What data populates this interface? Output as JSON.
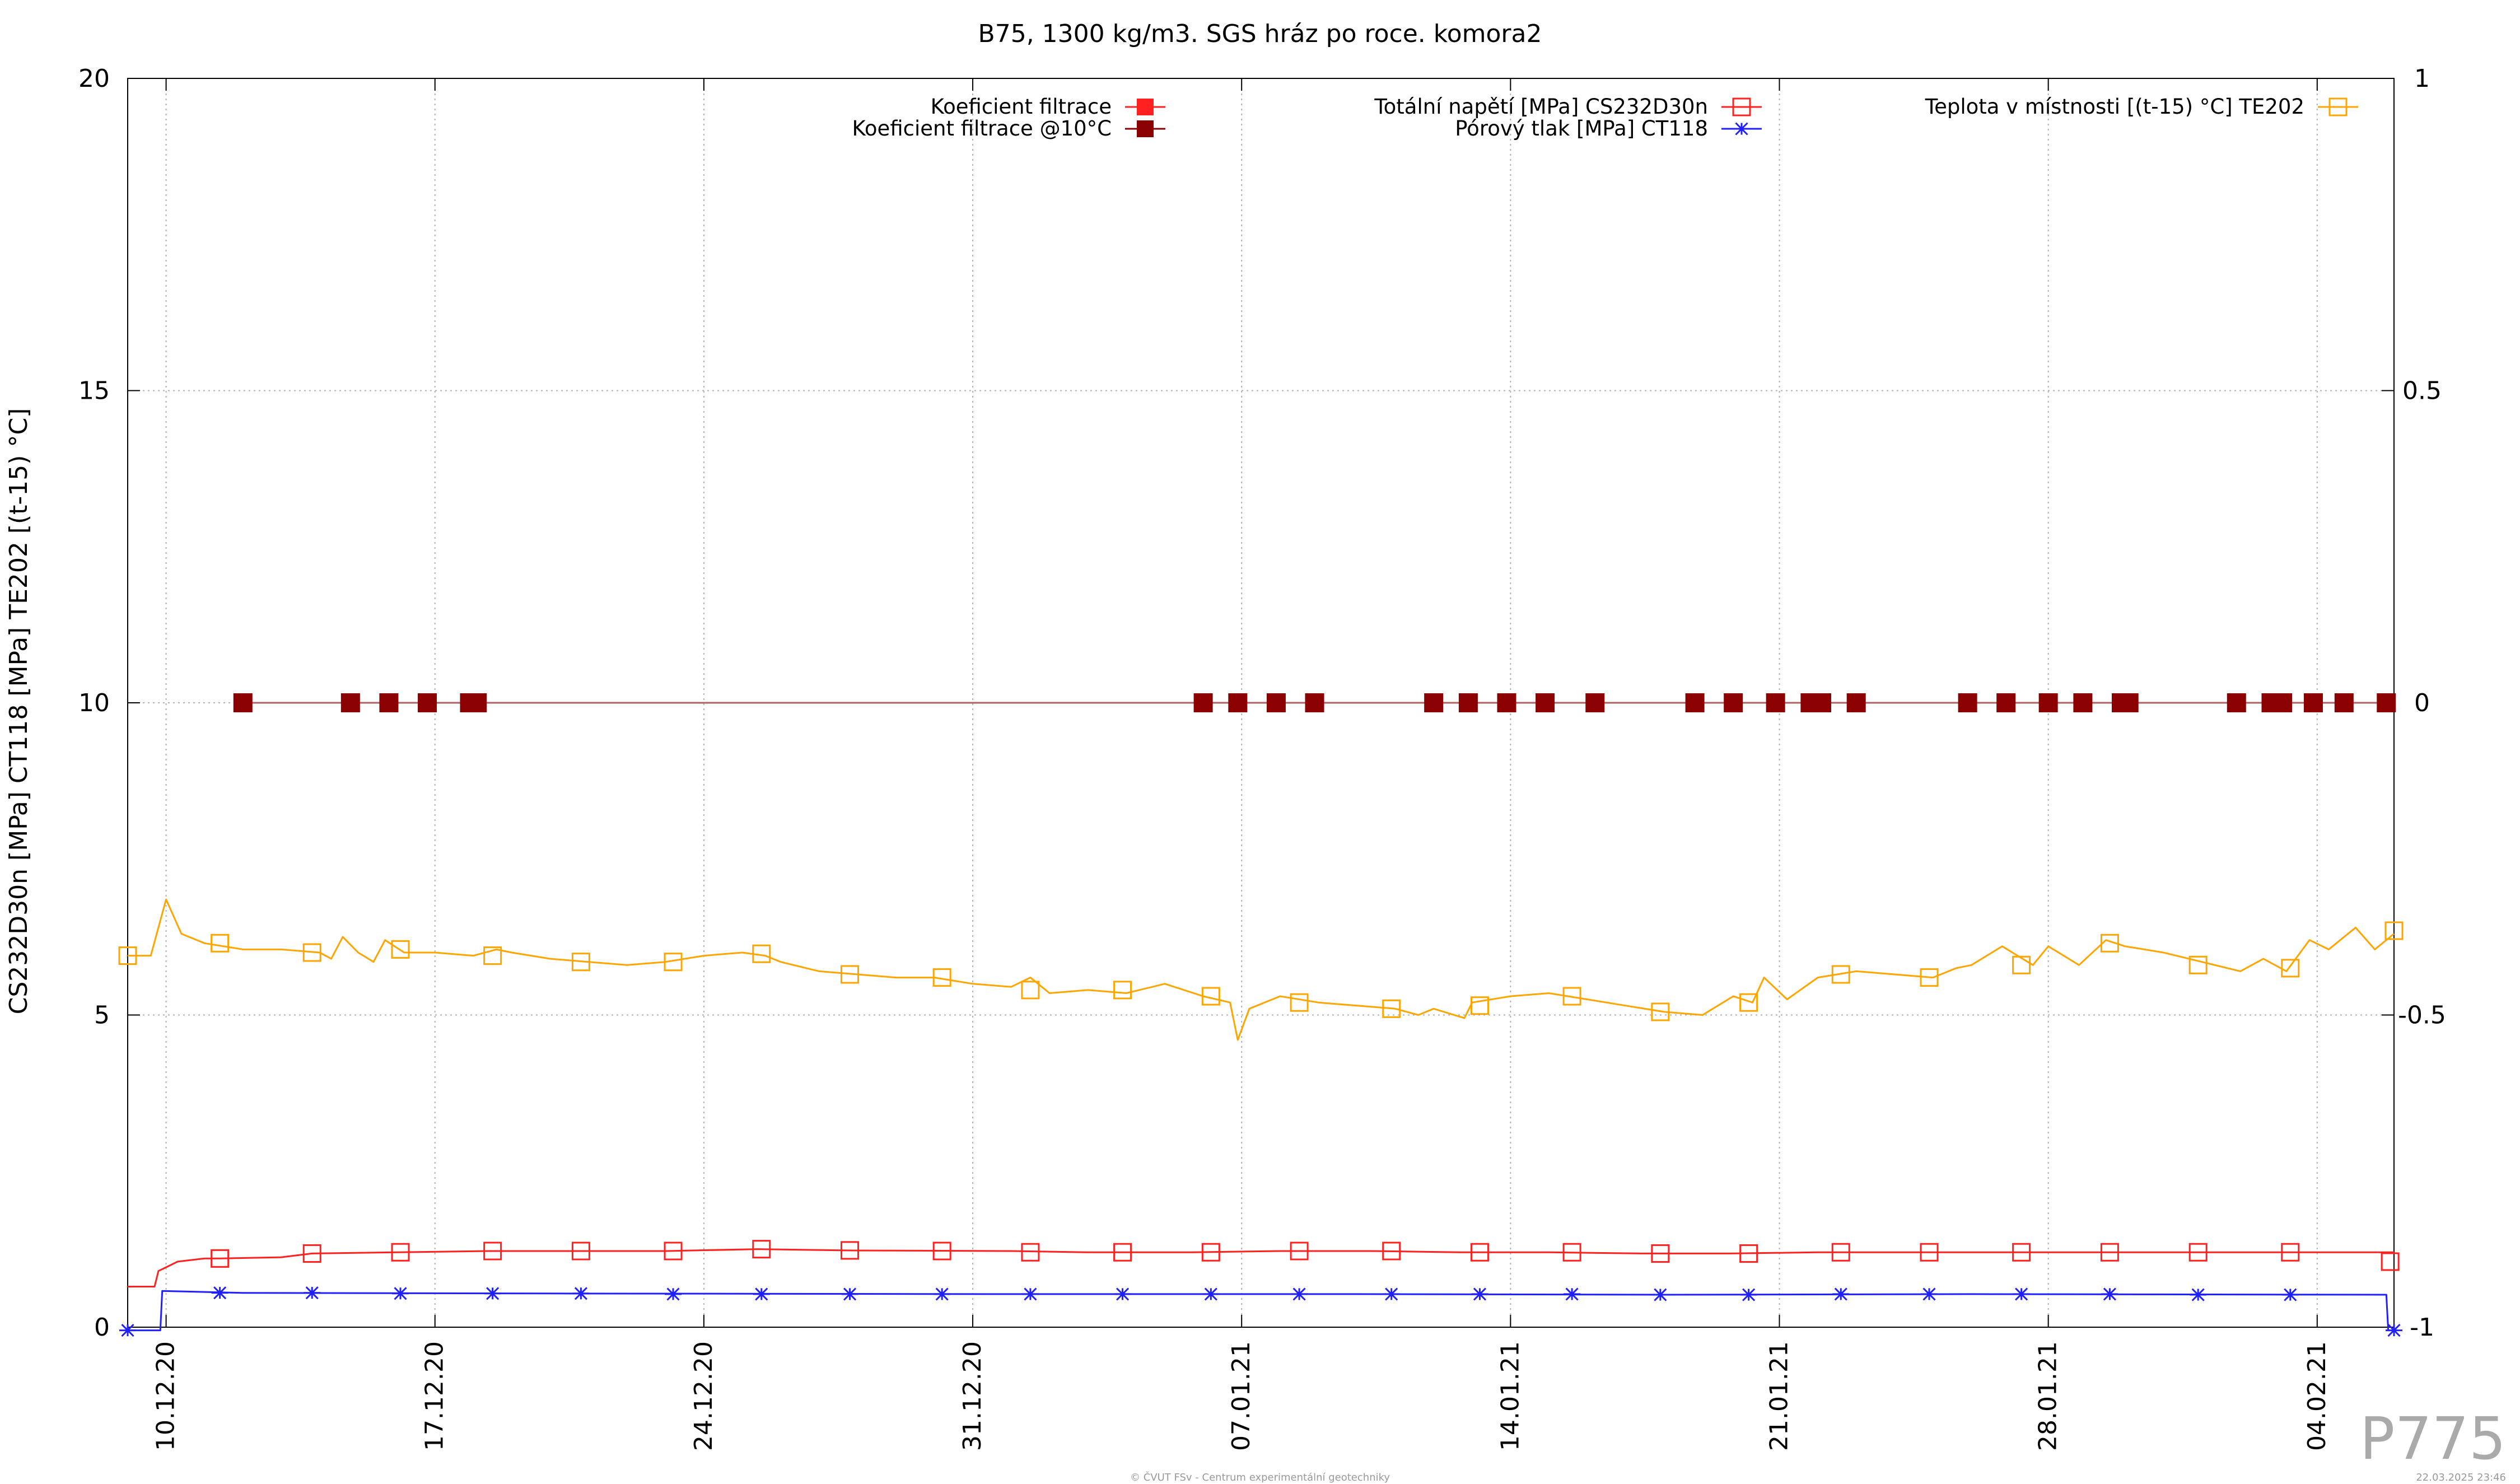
{
  "chart_data": {
    "type": "line",
    "title": "B75, 1300 kg/m3. SGS hráz po roce. komora2",
    "ylabel": "CS232D30n [MPa] CT118 [MPa] TE202 [(t-15) °C]",
    "xlabel": "",
    "x_range": [
      "2020-12-09",
      "2021-02-06"
    ],
    "ylim": [
      0,
      20
    ],
    "y2lim": [
      -1,
      1
    ],
    "y_ticks": [
      "0",
      "5",
      "10",
      "15",
      "20"
    ],
    "y2_ticks": [
      "-1",
      "-0.5",
      "0",
      "0.5",
      "1"
    ],
    "x_ticks": [
      {
        "date": "2020-12-10",
        "label": "10.12.20"
      },
      {
        "date": "2020-12-17",
        "label": "17.12.20"
      },
      {
        "date": "2020-12-24",
        "label": "24.12.20"
      },
      {
        "date": "2020-12-31",
        "label": "31.12.20"
      },
      {
        "date": "2021-01-07",
        "label": "07.01.21"
      },
      {
        "date": "2021-01-14",
        "label": "14.01.21"
      },
      {
        "date": "2021-01-21",
        "label": "21.01.21"
      },
      {
        "date": "2021-01-28",
        "label": "28.01.21"
      },
      {
        "date": "2021-02-04",
        "label": "04.02.21"
      }
    ],
    "grid": true,
    "legend": "top",
    "series": [
      {
        "name": "Koeficient filtrace",
        "axis": "y2",
        "color": "#ff2020",
        "marker": "filled-square",
        "points": []
      },
      {
        "name": "Koeficient filtrace @10°C",
        "axis": "y2",
        "color": "#8b0000",
        "marker": "filled-square",
        "points": [
          [
            "2020-12-12",
            0
          ],
          [
            "2020-12-14.8",
            0
          ],
          [
            "2020-12-15.8",
            0
          ],
          [
            "2020-12-16.8",
            0
          ],
          [
            "2020-12-17.9",
            0
          ],
          [
            "2020-12-18.1",
            0
          ],
          [
            "2021-01-06",
            0
          ],
          [
            "2021-01-06.9",
            0
          ],
          [
            "2021-01-07.9",
            0
          ],
          [
            "2021-01-08.9",
            0
          ],
          [
            "2021-01-12",
            0
          ],
          [
            "2021-01-12.9",
            0
          ],
          [
            "2021-01-13.9",
            0
          ],
          [
            "2021-01-14.9",
            0
          ],
          [
            "2021-01-16.2",
            0
          ],
          [
            "2021-01-18.8",
            0
          ],
          [
            "2021-01-19.8",
            0
          ],
          [
            "2021-01-20.9",
            0
          ],
          [
            "2021-01-21.8",
            0
          ],
          [
            "2021-01-22.1",
            0
          ],
          [
            "2021-01-23",
            0
          ],
          [
            "2021-01-25.9",
            0
          ],
          [
            "2021-01-26.9",
            0
          ],
          [
            "2021-01-28",
            0
          ],
          [
            "2021-01-28.9",
            0
          ],
          [
            "2021-01-29.9",
            0
          ],
          [
            "2021-01-30.1",
            0
          ],
          [
            "2021-02-01.9",
            0
          ],
          [
            "2021-02-02.8",
            0
          ],
          [
            "2021-02-03.1",
            0
          ],
          [
            "2021-02-03.9",
            0
          ],
          [
            "2021-02-04.7",
            0
          ],
          [
            "2021-02-05.8",
            0
          ]
        ]
      },
      {
        "name": "Totální napětí [MPa] CS232D30n",
        "axis": "y",
        "color": "#ff2020",
        "marker": "open-square",
        "points": [
          [
            "2020-12-09",
            0.65
          ],
          [
            "2020-12-09.7",
            0.65
          ],
          [
            "2020-12-09.8",
            0.9
          ],
          [
            "2020-12-10.3",
            1.05
          ],
          [
            "2020-12-11",
            1.1
          ],
          [
            "2020-12-11.4",
            1.1
          ],
          [
            "2020-12-13",
            1.12
          ],
          [
            "2020-12-13.8",
            1.18
          ],
          [
            "2020-12-16",
            1.2
          ],
          [
            "2020-12-18.4",
            1.22
          ],
          [
            "2020-12-20.7",
            1.22
          ],
          [
            "2020-12-23",
            1.22
          ],
          [
            "2020-12-25.4",
            1.25
          ],
          [
            "2020-12-27.7",
            1.23
          ],
          [
            "2021-01-01",
            1.22
          ],
          [
            "2021-01-03",
            1.2
          ],
          [
            "2021-01-05.7",
            1.2
          ],
          [
            "2021-01-08",
            1.22
          ],
          [
            "2021-01-10.4",
            1.22
          ],
          [
            "2021-01-12.7",
            1.2
          ],
          [
            "2021-01-15",
            1.2
          ],
          [
            "2021-01-17.4",
            1.18
          ],
          [
            "2021-01-19.7",
            1.18
          ],
          [
            "2021-01-22",
            1.2
          ],
          [
            "2021-01-24.4",
            1.2
          ],
          [
            "2021-01-26.7",
            1.2
          ],
          [
            "2021-01-29",
            1.2
          ],
          [
            "2021-01-31.4",
            1.2
          ],
          [
            "2021-02-02.7",
            1.2
          ],
          [
            "2021-02-06",
            1.2
          ]
        ],
        "marker_points": [
          [
            "2020-12-11.4",
            1.1
          ],
          [
            "2020-12-13.8",
            1.18
          ],
          [
            "2020-12-16.1",
            1.2
          ],
          [
            "2020-12-18.5",
            1.22
          ],
          [
            "2020-12-20.8",
            1.22
          ],
          [
            "2020-12-23.2",
            1.22
          ],
          [
            "2020-12-25.5",
            1.25
          ],
          [
            "2020-12-27.8",
            1.23
          ],
          [
            "2020-12-30.2",
            1.22
          ],
          [
            "2021-01-01.5",
            1.2
          ],
          [
            "2021-01-03.9",
            1.2
          ],
          [
            "2021-01-06.2",
            1.2
          ],
          [
            "2021-01-08.5",
            1.22
          ],
          [
            "2021-01-10.9",
            1.22
          ],
          [
            "2021-01-13.2",
            1.2
          ],
          [
            "2021-01-15.6",
            1.2
          ],
          [
            "2021-01-17.9",
            1.18
          ],
          [
            "2021-01-20.2",
            1.18
          ],
          [
            "2021-01-22.6",
            1.2
          ],
          [
            "2021-01-24.9",
            1.2
          ],
          [
            "2021-01-27.3",
            1.2
          ],
          [
            "2021-01-29.6",
            1.2
          ],
          [
            "2021-01-31.9",
            1.2
          ],
          [
            "2021-02-03.3",
            1.2
          ],
          [
            "2021-02-05.9",
            1.05
          ]
        ]
      },
      {
        "name": "Pórový tlak [MPa] CT118",
        "axis": "y",
        "color": "#2020ff",
        "marker": "asterisk",
        "points": [
          [
            "2020-12-09",
            -0.05
          ],
          [
            "2020-12-09.85",
            -0.05
          ],
          [
            "2020-12-09.9",
            0.58
          ],
          [
            "2020-12-12",
            0.55
          ],
          [
            "2020-12-20",
            0.54
          ],
          [
            "2021-01-01",
            0.53
          ],
          [
            "2021-01-10",
            0.53
          ],
          [
            "2021-01-18",
            0.52
          ],
          [
            "2021-01-26",
            0.53
          ],
          [
            "2021-02-05.8",
            0.52
          ],
          [
            "2021-02-05.85",
            -0.05
          ],
          [
            "2021-02-06",
            -0.05
          ]
        ],
        "marker_points": [
          [
            "2020-12-09",
            -0.05
          ],
          [
            "2020-12-11.4",
            0.55
          ],
          [
            "2020-12-13.8",
            0.55
          ],
          [
            "2020-12-16.1",
            0.54
          ],
          [
            "2020-12-18.5",
            0.54
          ],
          [
            "2020-12-20.8",
            0.54
          ],
          [
            "2020-12-23.2",
            0.53
          ],
          [
            "2020-12-25.5",
            0.53
          ],
          [
            "2020-12-27.8",
            0.53
          ],
          [
            "2020-12-30.2",
            0.53
          ],
          [
            "2021-01-01.5",
            0.53
          ],
          [
            "2021-01-03.9",
            0.53
          ],
          [
            "2021-01-06.2",
            0.53
          ],
          [
            "2021-01-08.5",
            0.53
          ],
          [
            "2021-01-10.9",
            0.53
          ],
          [
            "2021-01-13.2",
            0.53
          ],
          [
            "2021-01-15.6",
            0.53
          ],
          [
            "2021-01-17.9",
            0.52
          ],
          [
            "2021-01-20.2",
            0.52
          ],
          [
            "2021-01-22.6",
            0.53
          ],
          [
            "2021-01-24.9",
            0.53
          ],
          [
            "2021-01-27.3",
            0.53
          ],
          [
            "2021-01-29.6",
            0.53
          ],
          [
            "2021-01-31.9",
            0.52
          ],
          [
            "2021-02-03.3",
            0.52
          ],
          [
            "2021-02-06",
            -0.05
          ]
        ]
      },
      {
        "name": "Teplota v místnosti [(t-15) °C] TE202",
        "axis": "y",
        "color": "#ffa500",
        "marker": "open-square",
        "points": [
          [
            "2020-12-09",
            5.95
          ],
          [
            "2020-12-09.6",
            5.95
          ],
          [
            "2020-12-10",
            6.85
          ],
          [
            "2020-12-10.4",
            6.3
          ],
          [
            "2020-12-11",
            6.15
          ],
          [
            "2020-12-12",
            6.05
          ],
          [
            "2020-12-13",
            6.05
          ],
          [
            "2020-12-14",
            6.0
          ],
          [
            "2020-12-14.3",
            5.9
          ],
          [
            "2020-12-14.6",
            6.25
          ],
          [
            "2020-12-15",
            6.0
          ],
          [
            "2020-12-15.4",
            5.85
          ],
          [
            "2020-12-15.7",
            6.2
          ],
          [
            "2020-12-16.2",
            6.0
          ],
          [
            "2020-12-17",
            6.0
          ],
          [
            "2020-12-18",
            5.95
          ],
          [
            "2020-12-18.6",
            6.05
          ],
          [
            "2020-12-19",
            6.0
          ],
          [
            "2020-12-20",
            5.9
          ],
          [
            "2020-12-21",
            5.85
          ],
          [
            "2020-12-22",
            5.8
          ],
          [
            "2020-12-23",
            5.85
          ],
          [
            "2020-12-24",
            5.95
          ],
          [
            "2020-12-25",
            6.0
          ],
          [
            "2020-12-25.6",
            5.95
          ],
          [
            "2020-12-26",
            5.85
          ],
          [
            "2020-12-27",
            5.7
          ],
          [
            "2020-12-28",
            5.65
          ],
          [
            "2020-12-29",
            5.6
          ],
          [
            "2020-12-30",
            5.6
          ],
          [
            "2020-12-31",
            5.5
          ],
          [
            "2021-01-01",
            5.45
          ],
          [
            "2021-01-01.5",
            5.6
          ],
          [
            "2021-01-02",
            5.35
          ],
          [
            "2021-01-03",
            5.4
          ],
          [
            "2021-01-04",
            5.35
          ],
          [
            "2021-01-05",
            5.5
          ],
          [
            "2021-01-06",
            5.3
          ],
          [
            "2021-01-06.7",
            5.2
          ],
          [
            "2021-01-06.9",
            4.6
          ],
          [
            "2021-01-07.2",
            5.1
          ],
          [
            "2021-01-08",
            5.3
          ],
          [
            "2021-01-09",
            5.2
          ],
          [
            "2021-01-10",
            5.15
          ],
          [
            "2021-01-11",
            5.1
          ],
          [
            "2021-01-11.6",
            5.0
          ],
          [
            "2021-01-12",
            5.1
          ],
          [
            "2021-01-12.8",
            4.95
          ],
          [
            "2021-01-13",
            5.2
          ],
          [
            "2021-01-14",
            5.3
          ],
          [
            "2021-01-15",
            5.35
          ],
          [
            "2021-01-16",
            5.25
          ],
          [
            "2021-01-17",
            5.15
          ],
          [
            "2021-01-18",
            5.05
          ],
          [
            "2021-01-19",
            5.0
          ],
          [
            "2021-01-19.8",
            5.3
          ],
          [
            "2021-01-20.3",
            5.2
          ],
          [
            "2021-01-20.6",
            5.6
          ],
          [
            "2021-01-21.2",
            5.25
          ],
          [
            "2021-01-22",
            5.6
          ],
          [
            "2021-01-23",
            5.7
          ],
          [
            "2021-01-24",
            5.65
          ],
          [
            "2021-01-25",
            5.6
          ],
          [
            "2021-01-25.6",
            5.75
          ],
          [
            "2021-01-26",
            5.8
          ],
          [
            "2021-01-26.8",
            6.1
          ],
          [
            "2021-01-27.6",
            5.8
          ],
          [
            "2021-01-28",
            6.1
          ],
          [
            "2021-01-28.8",
            5.8
          ],
          [
            "2021-01-29.5",
            6.2
          ],
          [
            "2021-01-30",
            6.1
          ],
          [
            "2021-01-31",
            6.0
          ],
          [
            "2021-02-01",
            5.85
          ],
          [
            "2021-02-02",
            5.7
          ],
          [
            "2021-02-02.6",
            5.9
          ],
          [
            "2021-02-03.2",
            5.7
          ],
          [
            "2021-02-03.8",
            6.2
          ],
          [
            "2021-02-04.3",
            6.05
          ],
          [
            "2021-02-05",
            6.4
          ],
          [
            "2021-02-05.5",
            6.05
          ],
          [
            "2021-02-06",
            6.3
          ]
        ],
        "marker_points": [
          [
            "2020-12-09",
            5.95
          ],
          [
            "2020-12-11.4",
            6.15
          ],
          [
            "2020-12-13.8",
            6.0
          ],
          [
            "2020-12-16.1",
            6.05
          ],
          [
            "2020-12-18.5",
            5.95
          ],
          [
            "2020-12-20.8",
            5.85
          ],
          [
            "2020-12-23.2",
            5.85
          ],
          [
            "2020-12-25.5",
            5.98
          ],
          [
            "2020-12-27.8",
            5.65
          ],
          [
            "2020-12-30.2",
            5.6
          ],
          [
            "2021-01-01.5",
            5.4
          ],
          [
            "2021-01-03.9",
            5.4
          ],
          [
            "2021-01-06.2",
            5.3
          ],
          [
            "2021-01-08.5",
            5.2
          ],
          [
            "2021-01-10.9",
            5.1
          ],
          [
            "2021-01-13.2",
            5.15
          ],
          [
            "2021-01-15.6",
            5.3
          ],
          [
            "2021-01-17.9",
            5.05
          ],
          [
            "2021-01-20.2",
            5.2
          ],
          [
            "2021-01-22.6",
            5.65
          ],
          [
            "2021-01-24.9",
            5.6
          ],
          [
            "2021-01-27.3",
            5.8
          ],
          [
            "2021-01-29.6",
            6.15
          ],
          [
            "2021-01-31.9",
            5.8
          ],
          [
            "2021-02-03.3",
            5.75
          ],
          [
            "2021-02-06",
            6.35
          ]
        ]
      }
    ]
  },
  "watermark": "P775",
  "footer_credit": "© ČVUT FSv - Centrum experimentální geotechniky",
  "footer_timestamp": "22.03.2025 23:46"
}
